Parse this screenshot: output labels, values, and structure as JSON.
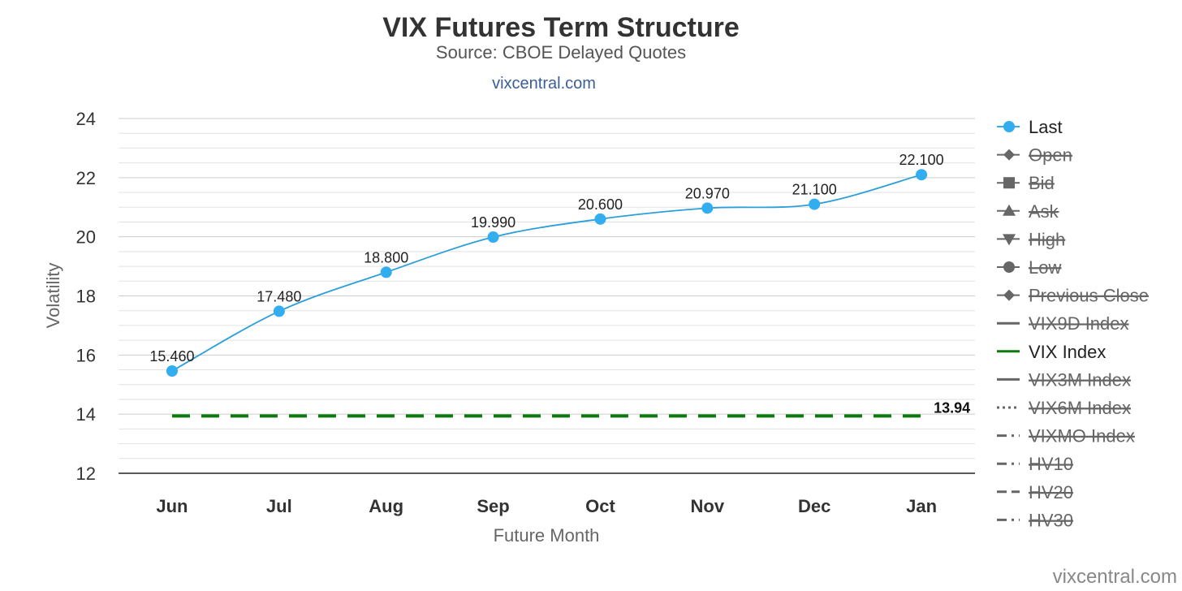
{
  "chart_data": {
    "type": "line",
    "title": "VIX Futures Term Structure",
    "subtitle": "Source: CBOE Delayed Quotes",
    "link_text": "vixcentral.com",
    "credit": "vixcentral.com",
    "xlabel": "Future Month",
    "ylabel": "Volatility",
    "categories": [
      "Jun",
      "Jul",
      "Aug",
      "Sep",
      "Oct",
      "Nov",
      "Dec",
      "Jan"
    ],
    "ylim": [
      12,
      24
    ],
    "yticks": [
      12,
      14,
      16,
      18,
      20,
      22,
      24
    ],
    "grid": true,
    "legend_position": "right",
    "series": [
      {
        "name": "Last",
        "values": [
          15.46,
          17.48,
          18.8,
          19.99,
          20.6,
          20.97,
          21.1,
          22.1
        ],
        "labels": [
          "15.460",
          "17.480",
          "18.800",
          "19.990",
          "20.600",
          "20.970",
          "21.100",
          "22.100"
        ],
        "color": "#2b9fd9",
        "marker_color": "#31adf0"
      },
      {
        "name": "VIX Index",
        "value": 13.94,
        "label": "13.94",
        "color": "#0c7a0c",
        "style": "dashed"
      }
    ],
    "legend": [
      {
        "name": "Last",
        "icon": "circle-line-icon",
        "visible": true
      },
      {
        "name": "Open",
        "icon": "diamond-line-icon",
        "visible": false
      },
      {
        "name": "Bid",
        "icon": "square-line-icon",
        "visible": false
      },
      {
        "name": "Ask",
        "icon": "triangle-line-icon",
        "visible": false
      },
      {
        "name": "High",
        "icon": "triangle-down-line-icon",
        "visible": false
      },
      {
        "name": "Low",
        "icon": "circle-line-icon",
        "visible": false
      },
      {
        "name": "Previous Close",
        "icon": "diamond-line-icon",
        "visible": false
      },
      {
        "name": "VIX9D Index",
        "icon": "solid-line-icon",
        "visible": false
      },
      {
        "name": "VIX Index",
        "icon": "green-line-icon",
        "visible": true
      },
      {
        "name": "VIX3M Index",
        "icon": "solid-line-icon",
        "visible": false
      },
      {
        "name": "VIX6M Index",
        "icon": "dotted-line-icon",
        "visible": false
      },
      {
        "name": "VIXMO Index",
        "icon": "dash-dot-line-icon",
        "visible": false
      },
      {
        "name": "HV10",
        "icon": "dash-dot-line-icon",
        "visible": false
      },
      {
        "name": "HV20",
        "icon": "dash-line-icon",
        "visible": false
      },
      {
        "name": "HV30",
        "icon": "dash-dot-line-icon",
        "visible": false
      }
    ],
    "colors": {
      "last_line": "#2b9fd9",
      "last_marker": "#31adf0",
      "vix_index": "#0c7a0c",
      "hidden_legend": "#666666",
      "visible_legend": "#222222",
      "grid": "#dddddd",
      "axis": "#222222"
    }
  }
}
